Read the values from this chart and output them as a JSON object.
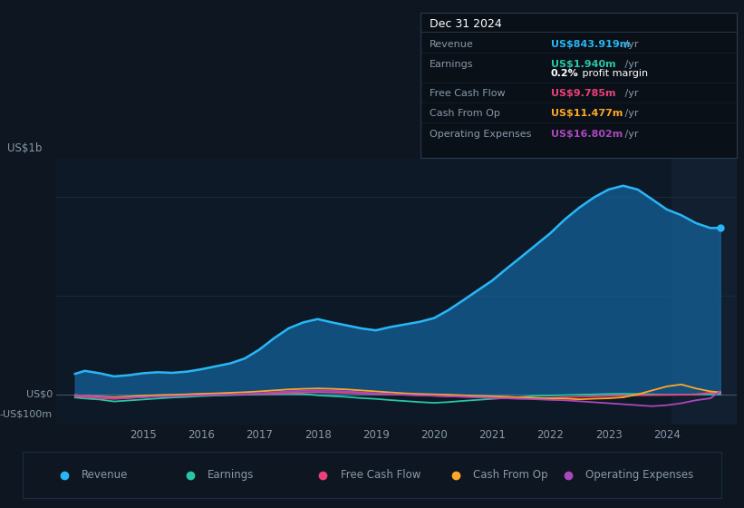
{
  "bg_color": "#0e1621",
  "plot_bg_color": "#0d1926",
  "grid_color": "#1a2d45",
  "text_color": "#8899aa",
  "title_color": "#ffffff",
  "ylabel_text": "US$1b",
  "y0_label": "US$0",
  "yn_label": "-US$100m",
  "ylim": [
    -150000000,
    1200000000
  ],
  "xlim": [
    2013.5,
    2025.2
  ],
  "revenue_color": "#29b6f6",
  "earnings_color": "#26c6a6",
  "fcf_color": "#ec407a",
  "cashfromop_color": "#ffa726",
  "opex_color": "#ab47bc",
  "revenue_fill_color": "#1565a0",
  "revenue_fill_alpha": 0.7,
  "shade_start": 2024.08,
  "shade_color": "#111f30",
  "info_box": {
    "title": "Dec 31 2024",
    "bg": "#0a1018",
    "border": "#2a3a50",
    "revenue_label": "Revenue",
    "revenue_val": "US$843.919m",
    "revenue_suffix": " /yr",
    "revenue_color": "#29b6f6",
    "earnings_label": "Earnings",
    "earnings_val": "US$1.940m",
    "earnings_suffix": " /yr",
    "earnings_color": "#26c6a6",
    "profit_margin": "0.2%",
    "profit_margin_suffix": " profit margin",
    "fcf_label": "Free Cash Flow",
    "fcf_val": "US$9.785m",
    "fcf_suffix": " /yr",
    "fcf_color": "#ec407a",
    "cashfromop_label": "Cash From Op",
    "cashfromop_val": "US$11.477m",
    "cashfromop_suffix": " /yr",
    "cashfromop_color": "#ffa726",
    "opex_label": "Operating Expenses",
    "opex_val": "US$16.802m",
    "opex_suffix": " /yr",
    "opex_color": "#ab47bc"
  },
  "legend": [
    {
      "label": "Revenue",
      "color": "#29b6f6"
    },
    {
      "label": "Earnings",
      "color": "#26c6a6"
    },
    {
      "label": "Free Cash Flow",
      "color": "#ec407a"
    },
    {
      "label": "Cash From Op",
      "color": "#ffa726"
    },
    {
      "label": "Operating Expenses",
      "color": "#ab47bc"
    }
  ],
  "revenue_x": [
    2013.83,
    2014.0,
    2014.25,
    2014.5,
    2014.75,
    2015.0,
    2015.25,
    2015.5,
    2015.75,
    2016.0,
    2016.25,
    2016.5,
    2016.75,
    2017.0,
    2017.25,
    2017.5,
    2017.75,
    2018.0,
    2018.25,
    2018.5,
    2018.75,
    2019.0,
    2019.25,
    2019.5,
    2019.75,
    2020.0,
    2020.25,
    2020.5,
    2020.75,
    2021.0,
    2021.25,
    2021.5,
    2021.75,
    2022.0,
    2022.25,
    2022.5,
    2022.75,
    2023.0,
    2023.25,
    2023.5,
    2023.75,
    2024.0,
    2024.25,
    2024.5,
    2024.75,
    2024.92
  ],
  "revenue_y": [
    105,
    120,
    108,
    92,
    98,
    108,
    113,
    110,
    116,
    128,
    143,
    158,
    183,
    228,
    285,
    335,
    365,
    382,
    365,
    350,
    335,
    325,
    342,
    355,
    368,
    387,
    428,
    477,
    527,
    577,
    638,
    697,
    757,
    817,
    887,
    947,
    998,
    1038,
    1057,
    1038,
    988,
    937,
    908,
    868,
    843,
    843.919
  ],
  "earnings_x": [
    2013.83,
    2014.0,
    2014.25,
    2014.5,
    2014.75,
    2015.0,
    2015.25,
    2015.5,
    2015.75,
    2016.0,
    2016.25,
    2016.5,
    2016.75,
    2017.0,
    2017.25,
    2017.5,
    2017.75,
    2018.0,
    2018.25,
    2018.5,
    2018.75,
    2019.0,
    2019.25,
    2019.5,
    2019.75,
    2020.0,
    2020.25,
    2020.5,
    2020.75,
    2021.0,
    2021.25,
    2021.5,
    2021.75,
    2022.0,
    2022.25,
    2022.5,
    2022.75,
    2023.0,
    2023.25,
    2023.5,
    2023.75,
    2024.0,
    2024.25,
    2024.5,
    2024.75,
    2024.92
  ],
  "earnings_y": [
    -15,
    -20,
    -25,
    -35,
    -30,
    -25,
    -20,
    -15,
    -12,
    -8,
    -5,
    -3,
    -1,
    2,
    4,
    5,
    3,
    -4,
    -8,
    -12,
    -18,
    -22,
    -28,
    -33,
    -38,
    -42,
    -38,
    -32,
    -27,
    -22,
    -17,
    -12,
    -7,
    -5,
    -3,
    -1,
    1,
    3,
    4,
    3,
    1,
    -1,
    -0.5,
    1,
    2,
    1.94
  ],
  "fcf_x": [
    2013.83,
    2014.0,
    2014.25,
    2014.5,
    2014.75,
    2015.0,
    2015.25,
    2015.5,
    2015.75,
    2016.0,
    2016.25,
    2016.5,
    2016.75,
    2017.0,
    2017.25,
    2017.5,
    2017.75,
    2018.0,
    2018.25,
    2018.5,
    2018.75,
    2019.0,
    2019.25,
    2019.5,
    2019.75,
    2020.0,
    2020.25,
    2020.5,
    2020.75,
    2021.0,
    2021.25,
    2021.5,
    2021.75,
    2022.0,
    2022.25,
    2022.5,
    2022.75,
    2023.0,
    2023.25,
    2023.5,
    2023.75,
    2024.0,
    2024.25,
    2024.5,
    2024.75,
    2024.92
  ],
  "fcf_y": [
    -8,
    -12,
    -18,
    -22,
    -18,
    -13,
    -8,
    -6,
    -4,
    -2,
    -1,
    0,
    1,
    3,
    6,
    9,
    11,
    13,
    11,
    9,
    6,
    3,
    1,
    -1,
    -4,
    -6,
    -9,
    -11,
    -14,
    -17,
    -19,
    -21,
    -19,
    -17,
    -14,
    -11,
    -9,
    -7,
    -5,
    -4,
    -3,
    -2,
    -1,
    1,
    9,
    9.785
  ],
  "cashfromop_x": [
    2013.83,
    2014.0,
    2014.25,
    2014.5,
    2014.75,
    2015.0,
    2015.25,
    2015.5,
    2015.75,
    2016.0,
    2016.25,
    2016.5,
    2016.75,
    2017.0,
    2017.25,
    2017.5,
    2017.75,
    2018.0,
    2018.25,
    2018.5,
    2018.75,
    2019.0,
    2019.25,
    2019.5,
    2019.75,
    2020.0,
    2020.25,
    2020.5,
    2020.75,
    2021.0,
    2021.25,
    2021.5,
    2021.75,
    2022.0,
    2022.25,
    2022.5,
    2022.75,
    2023.0,
    2023.25,
    2023.5,
    2023.75,
    2024.0,
    2024.25,
    2024.5,
    2024.75,
    2024.92
  ],
  "cashfromop_y": [
    -3,
    -6,
    -10,
    -13,
    -10,
    -6,
    -3,
    -1,
    1,
    4,
    6,
    9,
    12,
    16,
    21,
    26,
    29,
    31,
    29,
    26,
    21,
    16,
    11,
    6,
    3,
    1,
    -1,
    -4,
    -7,
    -9,
    -11,
    -14,
    -17,
    -19,
    -21,
    -24,
    -21,
    -19,
    -14,
    1,
    21,
    41,
    51,
    31,
    16,
    11.477
  ],
  "opex_x": [
    2013.83,
    2014.0,
    2014.25,
    2014.5,
    2014.75,
    2015.0,
    2015.25,
    2015.5,
    2015.75,
    2016.0,
    2016.25,
    2016.5,
    2016.75,
    2017.0,
    2017.25,
    2017.5,
    2017.75,
    2018.0,
    2018.25,
    2018.5,
    2018.75,
    2019.0,
    2019.25,
    2019.5,
    2019.75,
    2020.0,
    2020.25,
    2020.5,
    2020.75,
    2021.0,
    2021.25,
    2021.5,
    2021.75,
    2022.0,
    2022.25,
    2022.5,
    2022.75,
    2023.0,
    2023.25,
    2023.5,
    2023.75,
    2024.0,
    2024.25,
    2024.5,
    2024.75,
    2024.92
  ],
  "opex_y": [
    -3,
    -6,
    -13,
    -18,
    -16,
    -13,
    -10,
    -8,
    -6,
    -4,
    -2,
    0,
    2,
    6,
    11,
    16,
    19,
    21,
    19,
    16,
    11,
    6,
    3,
    -1,
    -4,
    -6,
    -9,
    -11,
    -14,
    -17,
    -19,
    -21,
    -24,
    -27,
    -29,
    -34,
    -39,
    -44,
    -49,
    -54,
    -59,
    -54,
    -44,
    -29,
    -19,
    16.802
  ]
}
